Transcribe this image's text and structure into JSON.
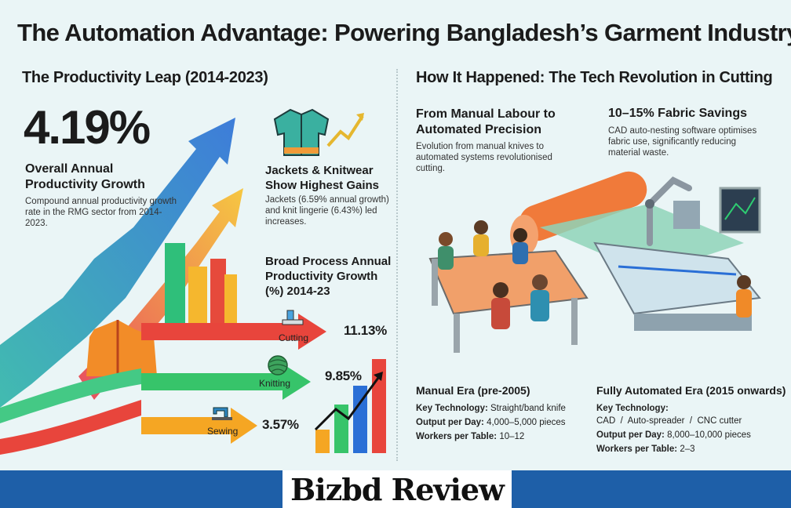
{
  "title": "The Automation Advantage: Powering Bangladesh’s Garment Industry",
  "left": {
    "heading": "The Productivity Leap (2014-2023)",
    "big_stat": "4.19%",
    "stat_label": "Overall Annual Productivity Growth",
    "stat_desc": "Compound annual productivity growth rate in the RMG sector from 2014-2023.",
    "jackets_title": "Jackets & Knitwear Show Highest Gains",
    "jackets_desc": "Jackets (6.59% annual growth) and knit lingerie (6.43%) led increases.",
    "process_title": "Broad Process Annual Productivity Growth (%) 2014-23",
    "processes": [
      {
        "label": "Cutting",
        "value": "11.13%"
      },
      {
        "label": "Knitting",
        "value": "9.85%"
      },
      {
        "label": "Sewing",
        "value": "3.57%"
      }
    ]
  },
  "right": {
    "heading": "How It Happened: The Tech Revolution in Cutting",
    "manual_head": "From Manual Labour to Automated Precision",
    "manual_desc": "Evolution from manual knives to automated systems revolutionised cutting.",
    "savings_head": "10–15% Fabric Savings",
    "savings_desc": "CAD auto-nesting software optimises fabric use, significantly reducing material waste.",
    "manual_era": {
      "title": "Manual Era (pre-2005)",
      "tech_label": "Key Technology:",
      "tech_value": "Straight/band knife",
      "output_label": "Output per Day:",
      "output_value": "4,000–5,000 pieces",
      "workers_label": "Workers per Table:",
      "workers_value": "10–12"
    },
    "auto_era": {
      "title": "Fully Automated Era (2015 onwards)",
      "tech_label": "Key Technology:",
      "tech_value": "CAD  /  Auto-spreader  /  CNC cutter",
      "output_label": "Output per Day:",
      "output_value": "8,000–10,000 pieces",
      "workers_label": "Workers per Table:",
      "workers_value": "2–3"
    }
  },
  "footer": {
    "logo": "Bizbd Review"
  },
  "colors": {
    "background": "#eaf5f6",
    "footer_blue": "#1e5fa8",
    "cutting": "#e8453c",
    "knitting": "#37c46a",
    "sewing": "#f5a623"
  }
}
